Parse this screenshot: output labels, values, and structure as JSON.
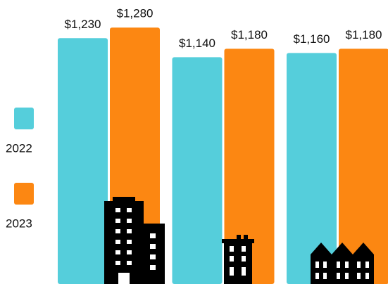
{
  "chart_data": {
    "type": "bar",
    "categories": [
      null,
      null,
      null
    ],
    "series": [
      {
        "name": "2022",
        "color": "#55cedb",
        "values": [
          1230,
          1140,
          1160
        ],
        "value_labels": [
          "$1,230",
          "$1,140",
          "$1,160"
        ]
      },
      {
        "name": "2023",
        "color": "#fc8712",
        "values": [
          1280,
          1180,
          1180
        ],
        "value_labels": [
          "$1,280",
          "$1,180",
          "$1,180"
        ]
      }
    ],
    "ylim": [
      70,
      1410
    ],
    "legend": "left"
  }
}
